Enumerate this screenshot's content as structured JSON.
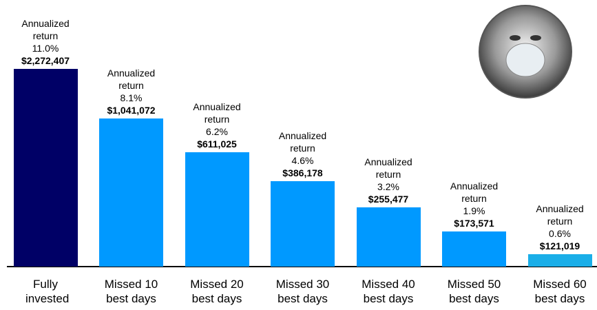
{
  "chart_data": {
    "type": "bar",
    "categories": [
      "Fully invested",
      "Missed 10 best days",
      "Missed 20 best days",
      "Missed 30 best days",
      "Missed 40 best days",
      "Missed 50 best days",
      "Missed 60 best days"
    ],
    "values": [
      2272407,
      1041072,
      611025,
      386178,
      255477,
      173571,
      121019
    ],
    "value_labels": [
      "$2,272,407",
      "$1,041,072",
      "$611,025",
      "$386,178",
      "$255,477",
      "$173,571",
      "$121,019"
    ],
    "return_title": "Annualized return",
    "annualized_returns": [
      11.0,
      8.1,
      6.2,
      4.6,
      3.2,
      1.9,
      0.6
    ],
    "annualized_return_labels": [
      "11.0%",
      "8.1%",
      "6.2%",
      "4.6%",
      "3.2%",
      "1.9%",
      "0.6%"
    ],
    "colors": [
      "#000066",
      "#0099ff",
      "#0099ff",
      "#0099ff",
      "#0099ff",
      "#0099ff",
      "#1aaee8"
    ],
    "log_scale": true,
    "ylim": [
      100000,
      2300000
    ]
  }
}
